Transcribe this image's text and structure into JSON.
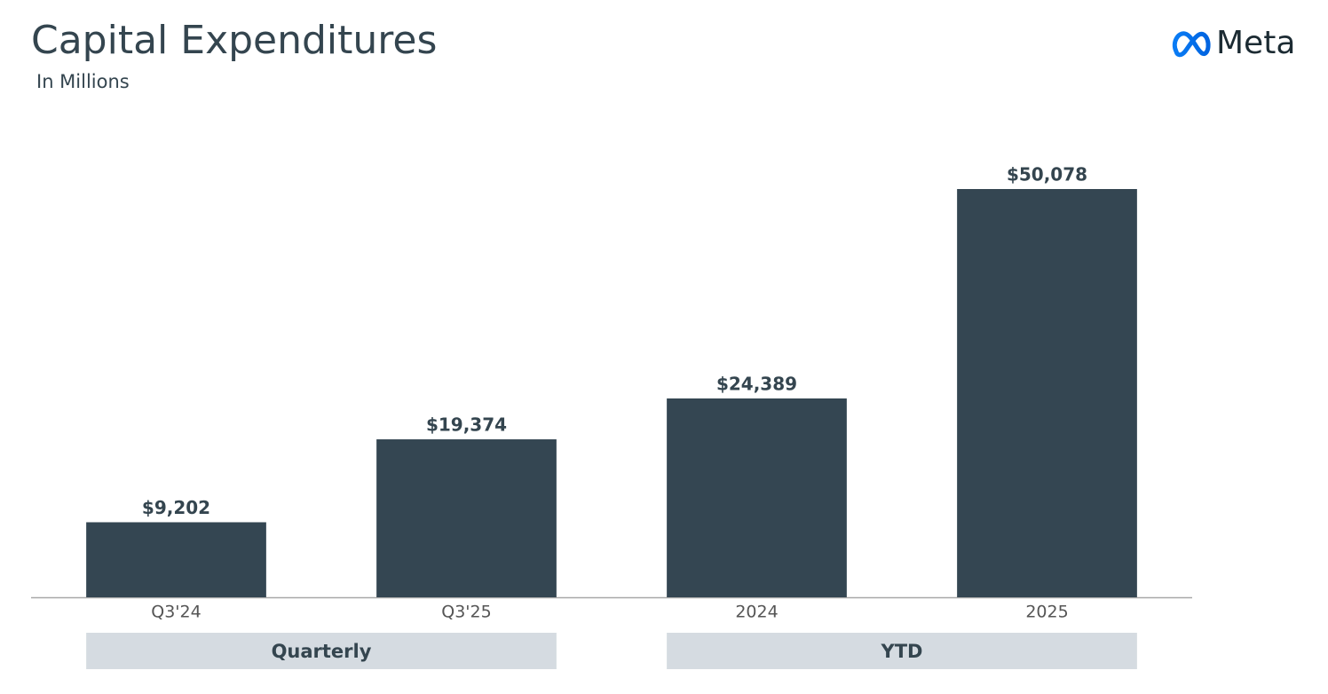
{
  "brand": "Meta",
  "chart_data": {
    "type": "bar",
    "title": "Capital Expenditures",
    "subtitle": "In Millions",
    "categories": [
      "Q3'24",
      "Q3'25",
      "2024",
      "2025"
    ],
    "values": [
      9202,
      19374,
      24389,
      50078
    ],
    "value_labels": [
      "$9,202",
      "$19,374",
      "$24,389",
      "$50,078"
    ],
    "groups": [
      "Quarterly",
      "YTD"
    ],
    "color": "#344652"
  }
}
